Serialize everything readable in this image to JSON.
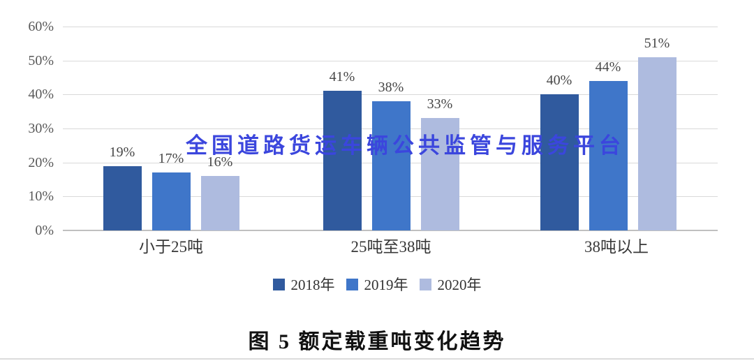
{
  "figure": {
    "watermark": {
      "text": "全国道路货运车辆公共监管与服务平台",
      "color": "#3b46dd"
    },
    "caption": "图 5  额定载重吨变化趋势"
  },
  "chart_data": {
    "type": "bar",
    "title": "",
    "xlabel": "",
    "ylabel": "",
    "categories": [
      "小于25吨",
      "25吨至38吨",
      "38吨以上"
    ],
    "series": [
      {
        "name": "2018年",
        "color": "#305a9e",
        "values": [
          19,
          41,
          40
        ]
      },
      {
        "name": "2019年",
        "color": "#3f76c9",
        "values": [
          17,
          38,
          44
        ]
      },
      {
        "name": "2020年",
        "color": "#aebbdf",
        "values": [
          16,
          33,
          51
        ]
      }
    ],
    "value_labels": [
      [
        "19%",
        "41%",
        "40%"
      ],
      [
        "17%",
        "38%",
        "44%"
      ],
      [
        "16%",
        "33%",
        "51%"
      ]
    ],
    "y_ticks": [
      "0%",
      "10%",
      "20%",
      "30%",
      "40%",
      "50%",
      "60%"
    ],
    "ylim": [
      0,
      60
    ],
    "grid": true,
    "gridline_color": "#d9d9d9",
    "baseline_color": "#c0c0c0",
    "legend_position": "bottom"
  }
}
